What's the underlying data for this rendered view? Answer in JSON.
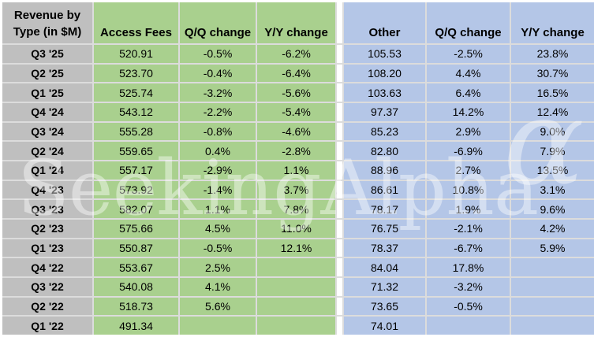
{
  "chart_data": {
    "type": "table",
    "title": "Revenue by Type (in $M)",
    "corner_header": {
      "line1": "Revenue by",
      "line2": "Type (in $M)"
    },
    "access_section": {
      "label": "Access Fees",
      "qq_header": "Q/Q change",
      "yy_header": "Y/Y change"
    },
    "other_section": {
      "label": "Other",
      "qq_header": "Q/Q change",
      "yy_header": "Y/Y change"
    },
    "rows": [
      {
        "quarter": "Q3 '25",
        "access_fees": "520.91",
        "access_qq": "-0.5%",
        "access_yy": "-6.2%",
        "other": "105.53",
        "other_qq": "-2.5%",
        "other_yy": "23.8%"
      },
      {
        "quarter": "Q2 '25",
        "access_fees": "523.70",
        "access_qq": "-0.4%",
        "access_yy": "-6.4%",
        "other": "108.20",
        "other_qq": "4.4%",
        "other_yy": "30.7%"
      },
      {
        "quarter": "Q1 '25",
        "access_fees": "525.74",
        "access_qq": "-3.2%",
        "access_yy": "-5.6%",
        "other": "103.63",
        "other_qq": "6.4%",
        "other_yy": "16.5%"
      },
      {
        "quarter": "Q4 '24",
        "access_fees": "543.12",
        "access_qq": "-2.2%",
        "access_yy": "-5.4%",
        "other": "97.37",
        "other_qq": "14.2%",
        "other_yy": "12.4%"
      },
      {
        "quarter": "Q3 '24",
        "access_fees": "555.28",
        "access_qq": "-0.8%",
        "access_yy": "-4.6%",
        "other": "85.23",
        "other_qq": "2.9%",
        "other_yy": "9.0%"
      },
      {
        "quarter": "Q2 '24",
        "access_fees": "559.65",
        "access_qq": "0.4%",
        "access_yy": "-2.8%",
        "other": "82.80",
        "other_qq": "-6.9%",
        "other_yy": "7.9%"
      },
      {
        "quarter": "Q1 '24",
        "access_fees": "557.17",
        "access_qq": "-2.9%",
        "access_yy": "1.1%",
        "other": "88.96",
        "other_qq": "2.7%",
        "other_yy": "13.5%"
      },
      {
        "quarter": "Q4 '23",
        "access_fees": "573.92",
        "access_qq": "-1.4%",
        "access_yy": "3.7%",
        "other": "86.61",
        "other_qq": "10.8%",
        "other_yy": "3.1%"
      },
      {
        "quarter": "Q3 '23",
        "access_fees": "582.07",
        "access_qq": "1.1%",
        "access_yy": "7.8%",
        "other": "78.17",
        "other_qq": "1.9%",
        "other_yy": "9.6%"
      },
      {
        "quarter": "Q2 '23",
        "access_fees": "575.66",
        "access_qq": "4.5%",
        "access_yy": "11.0%",
        "other": "76.75",
        "other_qq": "-2.1%",
        "other_yy": "4.2%"
      },
      {
        "quarter": "Q1 '23",
        "access_fees": "550.87",
        "access_qq": "-0.5%",
        "access_yy": "12.1%",
        "other": "78.37",
        "other_qq": "-6.7%",
        "other_yy": "5.9%"
      },
      {
        "quarter": "Q4 '22",
        "access_fees": "553.67",
        "access_qq": "2.5%",
        "access_yy": "",
        "other": "84.04",
        "other_qq": "17.8%",
        "other_yy": ""
      },
      {
        "quarter": "Q3 '22",
        "access_fees": "540.08",
        "access_qq": "4.1%",
        "access_yy": "",
        "other": "71.32",
        "other_qq": "-3.2%",
        "other_yy": ""
      },
      {
        "quarter": "Q2 '22",
        "access_fees": "518.73",
        "access_qq": "5.6%",
        "access_yy": "",
        "other": "73.65",
        "other_qq": "-0.5%",
        "other_yy": ""
      },
      {
        "quarter": "Q1 '22",
        "access_fees": "491.34",
        "access_qq": "",
        "access_yy": "",
        "other": "74.01",
        "other_qq": "",
        "other_yy": ""
      }
    ]
  },
  "watermark": {
    "text": "SeekingAlpha",
    "symbol": "α"
  },
  "colors": {
    "row_label_bg": "#BFBFBF",
    "access_bg": "#A9D08E",
    "other_bg": "#B4C6E7",
    "gridline": "#DCDCDC",
    "text": "#000000"
  }
}
